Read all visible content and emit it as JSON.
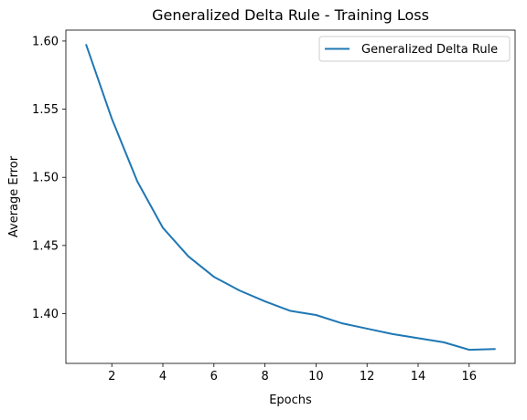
{
  "chart_data": {
    "type": "line",
    "title": "Generalized Delta Rule - Training Loss",
    "xlabel": "Epochs",
    "ylabel": "Average Error",
    "xlim": [
      0.2,
      17.8
    ],
    "ylim": [
      1.3635,
      1.608
    ],
    "xticks": [
      2,
      4,
      6,
      8,
      10,
      12,
      14,
      16
    ],
    "yticks": [
      1.4,
      1.45,
      1.5,
      1.55,
      1.6
    ],
    "ytick_labels": [
      "1.40",
      "1.45",
      "1.50",
      "1.55",
      "1.60"
    ],
    "grid": false,
    "legend_position": "top-right",
    "series": [
      {
        "name": "Generalized Delta Rule",
        "color": "#1f77b4",
        "x": [
          1,
          2,
          3,
          4,
          5,
          6,
          7,
          8,
          9,
          10,
          11,
          12,
          13,
          14,
          15,
          16,
          17
        ],
        "y": [
          1.597,
          1.543,
          1.497,
          1.463,
          1.442,
          1.427,
          1.417,
          1.409,
          1.402,
          1.399,
          1.393,
          1.389,
          1.385,
          1.382,
          1.379,
          1.3735,
          1.374
        ]
      }
    ]
  }
}
